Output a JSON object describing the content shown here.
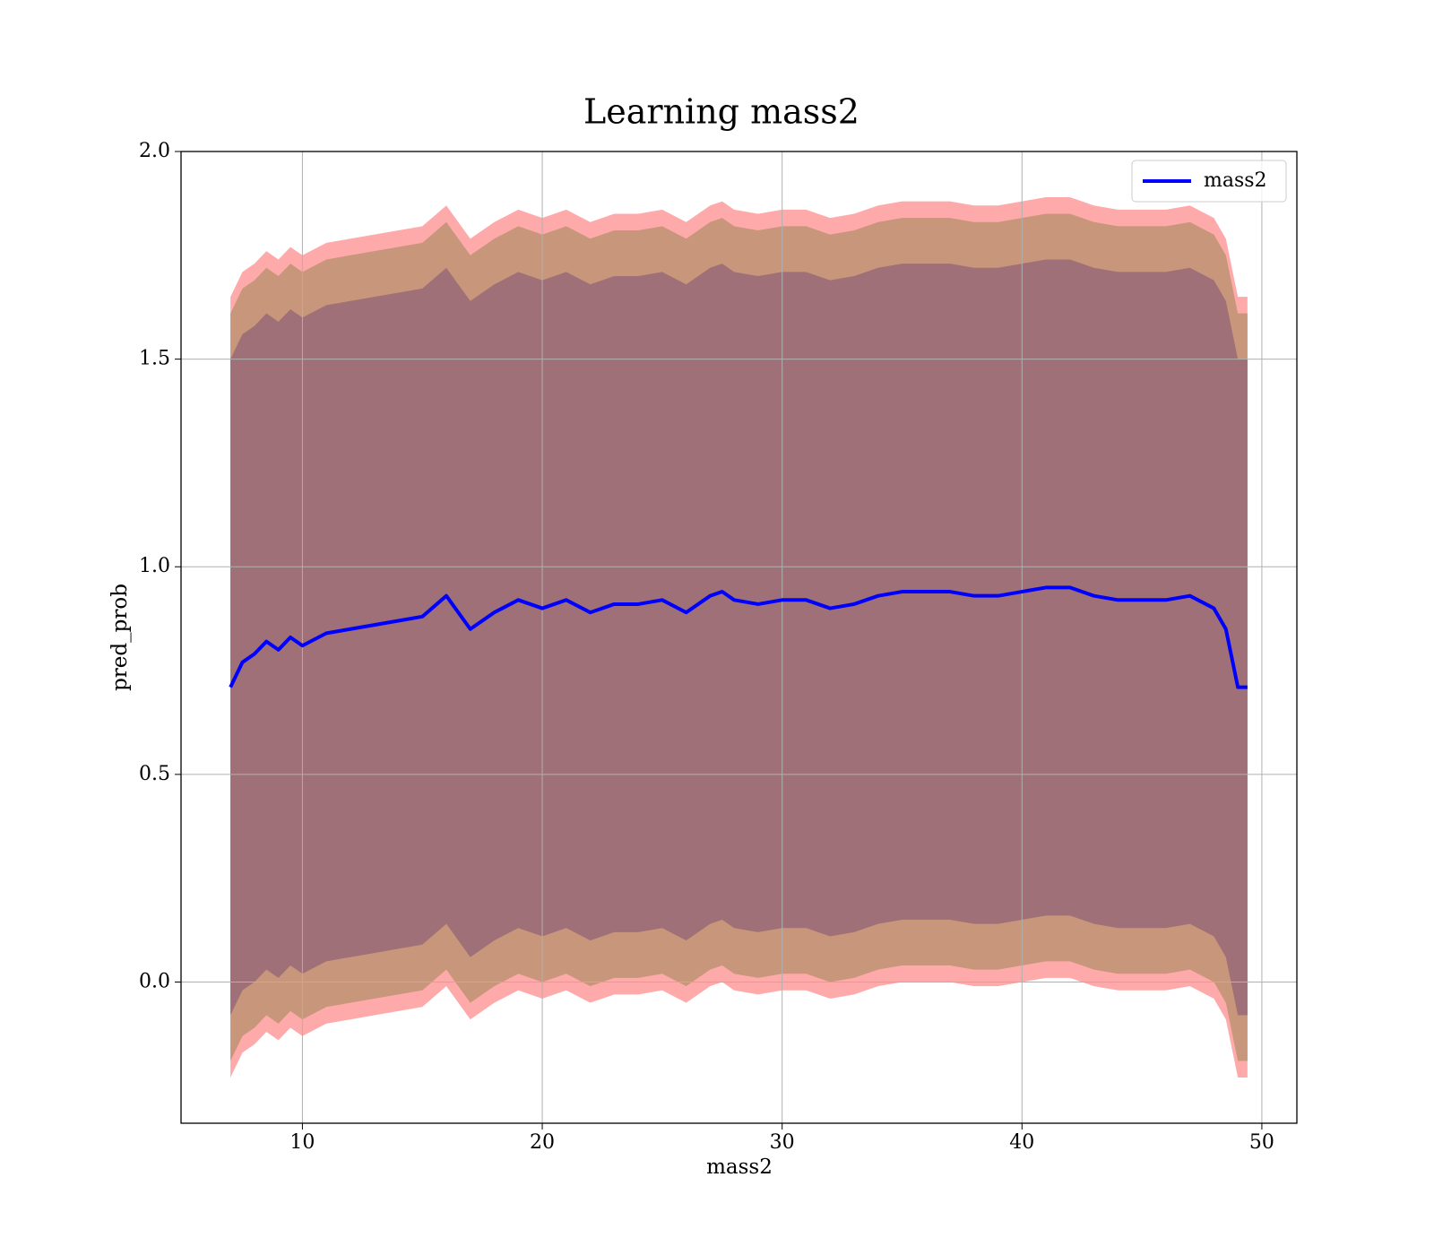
{
  "chart_data": {
    "type": "line",
    "title": "Learning mass2",
    "xlabel": "mass2",
    "ylabel": "pred_prob",
    "x": [
      7,
      7.5,
      8,
      8.5,
      9,
      9.5,
      10,
      11,
      12,
      13,
      14,
      15,
      16,
      17,
      18,
      19,
      20,
      21,
      22,
      23,
      24,
      25,
      26,
      27,
      27.5,
      28,
      29,
      30,
      31,
      32,
      33,
      34,
      35,
      36,
      37,
      38,
      39,
      40,
      41,
      42,
      43,
      44,
      45,
      46,
      47,
      48,
      48.5,
      49,
      49.4
    ],
    "series": [
      {
        "name": "mass2",
        "color": "#0000ff",
        "values": [
          0.71,
          0.77,
          0.79,
          0.82,
          0.8,
          0.83,
          0.81,
          0.84,
          0.85,
          0.86,
          0.87,
          0.88,
          0.93,
          0.85,
          0.89,
          0.92,
          0.9,
          0.92,
          0.89,
          0.91,
          0.91,
          0.92,
          0.89,
          0.93,
          0.94,
          0.92,
          0.91,
          0.92,
          0.92,
          0.9,
          0.91,
          0.93,
          0.94,
          0.94,
          0.94,
          0.93,
          0.93,
          0.94,
          0.95,
          0.95,
          0.93,
          0.92,
          0.92,
          0.92,
          0.93,
          0.9,
          0.85,
          0.71,
          0.71
        ]
      }
    ],
    "bands": [
      {
        "color": "#ffaaaa",
        "upper": [
          1.65,
          1.71,
          1.73,
          1.76,
          1.74,
          1.77,
          1.75,
          1.78,
          1.79,
          1.8,
          1.81,
          1.82,
          1.87,
          1.79,
          1.83,
          1.86,
          1.84,
          1.86,
          1.83,
          1.85,
          1.85,
          1.86,
          1.83,
          1.87,
          1.88,
          1.86,
          1.85,
          1.86,
          1.86,
          1.84,
          1.85,
          1.87,
          1.88,
          1.88,
          1.88,
          1.87,
          1.87,
          1.88,
          1.89,
          1.89,
          1.87,
          1.86,
          1.86,
          1.86,
          1.87,
          1.84,
          1.79,
          1.65,
          1.65
        ],
        "lower": [
          -0.23,
          -0.17,
          -0.15,
          -0.12,
          -0.14,
          -0.11,
          -0.13,
          -0.1,
          -0.09,
          -0.08,
          -0.07,
          -0.06,
          -0.01,
          -0.09,
          -0.05,
          -0.02,
          -0.04,
          -0.02,
          -0.05,
          -0.03,
          -0.03,
          -0.02,
          -0.05,
          -0.01,
          0.0,
          -0.02,
          -0.03,
          -0.02,
          -0.02,
          -0.04,
          -0.03,
          -0.01,
          0.0,
          0.0,
          0.0,
          -0.01,
          -0.01,
          0.0,
          0.01,
          0.01,
          -0.01,
          -0.02,
          -0.02,
          -0.02,
          -0.01,
          -0.04,
          -0.09,
          -0.23,
          -0.23
        ]
      },
      {
        "color": "#c8967a",
        "upper": [
          1.61,
          1.67,
          1.69,
          1.72,
          1.7,
          1.73,
          1.71,
          1.74,
          1.75,
          1.76,
          1.77,
          1.78,
          1.83,
          1.75,
          1.79,
          1.82,
          1.8,
          1.82,
          1.79,
          1.81,
          1.81,
          1.82,
          1.79,
          1.83,
          1.84,
          1.82,
          1.81,
          1.82,
          1.82,
          1.8,
          1.81,
          1.83,
          1.84,
          1.84,
          1.84,
          1.83,
          1.83,
          1.84,
          1.85,
          1.85,
          1.83,
          1.82,
          1.82,
          1.82,
          1.83,
          1.8,
          1.75,
          1.61,
          1.61
        ],
        "lower": [
          -0.19,
          -0.13,
          -0.11,
          -0.08,
          -0.1,
          -0.07,
          -0.09,
          -0.06,
          -0.05,
          -0.04,
          -0.03,
          -0.02,
          0.03,
          -0.05,
          -0.01,
          0.02,
          0.0,
          0.02,
          -0.01,
          0.01,
          0.01,
          0.02,
          -0.01,
          0.03,
          0.04,
          0.02,
          0.01,
          0.02,
          0.02,
          0.0,
          0.01,
          0.03,
          0.04,
          0.04,
          0.04,
          0.03,
          0.03,
          0.04,
          0.05,
          0.05,
          0.03,
          0.02,
          0.02,
          0.02,
          0.03,
          0.0,
          -0.05,
          -0.19,
          -0.19
        ]
      },
      {
        "color": "#a07078",
        "upper": [
          1.5,
          1.56,
          1.58,
          1.61,
          1.59,
          1.62,
          1.6,
          1.63,
          1.64,
          1.65,
          1.66,
          1.67,
          1.72,
          1.64,
          1.68,
          1.71,
          1.69,
          1.71,
          1.68,
          1.7,
          1.7,
          1.71,
          1.68,
          1.72,
          1.73,
          1.71,
          1.7,
          1.71,
          1.71,
          1.69,
          1.7,
          1.72,
          1.73,
          1.73,
          1.73,
          1.72,
          1.72,
          1.73,
          1.74,
          1.74,
          1.72,
          1.71,
          1.71,
          1.71,
          1.72,
          1.69,
          1.64,
          1.5,
          1.5
        ],
        "lower": [
          -0.08,
          -0.02,
          0.0,
          0.03,
          0.01,
          0.04,
          0.02,
          0.05,
          0.06,
          0.07,
          0.08,
          0.09,
          0.14,
          0.06,
          0.1,
          0.13,
          0.11,
          0.13,
          0.1,
          0.12,
          0.12,
          0.13,
          0.1,
          0.14,
          0.15,
          0.13,
          0.12,
          0.13,
          0.13,
          0.11,
          0.12,
          0.14,
          0.15,
          0.15,
          0.15,
          0.14,
          0.14,
          0.15,
          0.16,
          0.16,
          0.14,
          0.13,
          0.13,
          0.13,
          0.14,
          0.11,
          0.06,
          -0.08,
          -0.08
        ]
      }
    ],
    "xlim": [
      4.94,
      51.46
    ],
    "ylim": [
      -0.34,
      2.0
    ],
    "xticks": [
      10,
      20,
      30,
      40,
      50
    ],
    "yticks": [
      {
        "value": 0,
        "label": "0.0"
      },
      {
        "value": 0.5,
        "label": "0.5"
      },
      {
        "value": 1,
        "label": "1.0"
      },
      {
        "value": 1.5,
        "label": "1.5"
      },
      {
        "value": 2,
        "label": "2.0"
      }
    ],
    "grid": true,
    "legend": "upper right"
  }
}
